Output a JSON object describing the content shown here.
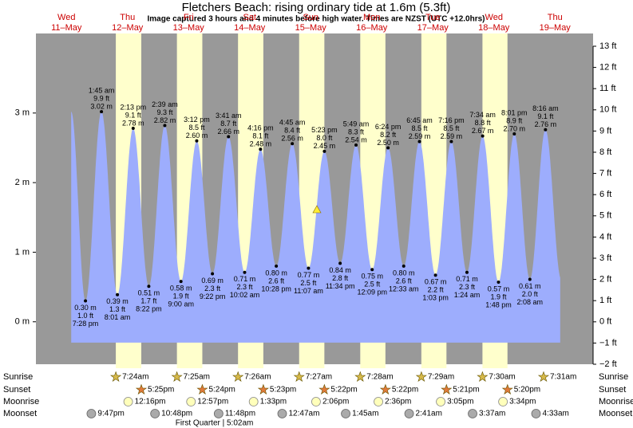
{
  "chart_data": {
    "type": "tide",
    "title": "Fletchers Beach: rising  ordinary tide at 1.6m (5.3ft)",
    "subtitle": "Image captured 3 hours and 4 minutes before high water. Times are NZST (UTC +12.0hrs)",
    "ylim": [
      -0.61,
      3.96
    ],
    "yticks": [
      {
        "value": 0,
        "label": "0 m"
      },
      {
        "value": 1,
        "label": "1 m"
      },
      {
        "value": 2,
        "label": "2 m"
      },
      {
        "value": 3,
        "label": "3 m"
      }
    ],
    "y2lim": [
      -2,
      13
    ],
    "y2ticks": [
      {
        "value": -2,
        "label": "−2 ft"
      },
      {
        "value": -1,
        "label": "−1 ft"
      },
      {
        "value": 0,
        "label": "0 ft"
      },
      {
        "value": 1,
        "label": "1 ft"
      },
      {
        "value": 2,
        "label": "2 ft"
      },
      {
        "value": 3,
        "label": "3 ft"
      },
      {
        "value": 4,
        "label": "4 ft"
      },
      {
        "value": 5,
        "label": "5 ft"
      },
      {
        "value": 6,
        "label": "6 ft"
      },
      {
        "value": 7,
        "label": "7 ft"
      },
      {
        "value": 8,
        "label": "8 ft"
      },
      {
        "value": 9,
        "label": "9 ft"
      },
      {
        "value": 10,
        "label": "10 ft"
      },
      {
        "value": 11,
        "label": "11 ft"
      },
      {
        "value": 12,
        "label": "12 ft"
      },
      {
        "value": 13,
        "label": "13 ft"
      }
    ],
    "color": "#9dadfd",
    "row_labels": {
      "sunrise": "Sunrise",
      "sunset": "Sunset",
      "moonrise": "Moonrise",
      "moonset": "Moonset"
    },
    "days": [
      {
        "weekday": "Wed",
        "date": "11–May",
        "sunrise": null,
        "sunset": null,
        "moonrise": null,
        "moonset": "9:47pm",
        "tides": [
          {
            "time": "7:28 pm",
            "value": 0.3,
            "value_label": "0.30 m",
            "ft_label": "1.0 ft"
          }
        ]
      },
      {
        "weekday": "Thu",
        "date": "12–May",
        "sunrise": "7:24am",
        "sunset": "5:25pm",
        "moonrise": "12:16pm",
        "moonset": "10:48pm",
        "tides": [
          {
            "time": "1:45 am",
            "value": 3.02,
            "value_label": "3.02 m",
            "ft_label": "9.9 ft"
          },
          {
            "time": "8:01 am",
            "value": 0.39,
            "value_label": "0.39 m",
            "ft_label": "1.3 ft"
          },
          {
            "time": "2:13 pm",
            "value": 2.78,
            "value_label": "2.78 m",
            "ft_label": "9.1 ft"
          },
          {
            "time": "8:22 pm",
            "value": 0.51,
            "value_label": "0.51 m",
            "ft_label": "1.7 ft"
          }
        ]
      },
      {
        "weekday": "Fri",
        "date": "13–May",
        "sunrise": "7:25am",
        "sunset": "5:24pm",
        "moonrise": "12:57pm",
        "moonset": "11:48pm",
        "tides": [
          {
            "time": "2:39 am",
            "value": 2.82,
            "value_label": "2.82 m",
            "ft_label": "9.3 ft"
          },
          {
            "time": "9:00 am",
            "value": 0.58,
            "value_label": "0.58 m",
            "ft_label": "1.9 ft"
          },
          {
            "time": "3:12 pm",
            "value": 2.6,
            "value_label": "2.60 m",
            "ft_label": "8.5 ft"
          },
          {
            "time": "9:22 pm",
            "value": 0.69,
            "value_label": "0.69 m",
            "ft_label": "2.3 ft"
          }
        ]
      },
      {
        "weekday": "Sat",
        "date": "14–May",
        "sunrise": "7:26am",
        "sunset": "5:23pm",
        "moonrise": "1:33pm",
        "moonset": null,
        "moon_phase": "First Quarter | 5:02am",
        "tides": [
          {
            "time": "3:41 am",
            "value": 2.66,
            "value_label": "2.66 m",
            "ft_label": "8.7 ft"
          },
          {
            "time": "10:02 am",
            "value": 0.71,
            "value_label": "0.71 m",
            "ft_label": "2.3 ft"
          },
          {
            "time": "4:16 pm",
            "value": 2.48,
            "value_label": "2.48 m",
            "ft_label": "8.1 ft"
          },
          {
            "time": "10:28 pm",
            "value": 0.8,
            "value_label": "0.80 m",
            "ft_label": "2.6 ft"
          }
        ]
      },
      {
        "weekday": "Sun",
        "date": "15–May",
        "sunrise": "7:27am",
        "sunset": "5:22pm",
        "moonrise": "2:06pm",
        "moonset": "12:47am",
        "tides": [
          {
            "time": "4:45 am",
            "value": 2.56,
            "value_label": "2.56 m",
            "ft_label": "8.4 ft"
          },
          {
            "time": "11:07 am",
            "value": 0.77,
            "value_label": "0.77 m",
            "ft_label": "2.5 ft"
          },
          {
            "time": "5:23 pm",
            "value": 2.45,
            "value_label": "2.45 m",
            "ft_label": "8.0 ft"
          },
          {
            "time": "11:34 pm",
            "value": 0.84,
            "value_label": "0.84 m",
            "ft_label": "2.8 ft"
          }
        ]
      },
      {
        "weekday": "Mon",
        "date": "16–May",
        "sunrise": "7:28am",
        "sunset": "5:22pm",
        "moonrise": "2:36pm",
        "moonset": "1:45am",
        "tides": [
          {
            "time": "5:49 am",
            "value": 2.54,
            "value_label": "2.54 m",
            "ft_label": "8.3 ft"
          },
          {
            "time": "12:09 pm",
            "value": 0.75,
            "value_label": "0.75 m",
            "ft_label": "2.5 ft"
          },
          {
            "time": "6:24 pm",
            "value": 2.5,
            "value_label": "2.50 m",
            "ft_label": "8.2 ft"
          }
        ]
      },
      {
        "weekday": "Tue",
        "date": "17–May",
        "sunrise": "7:29am",
        "sunset": "5:21pm",
        "moonrise": "3:05pm",
        "moonset": "2:41am",
        "tides": [
          {
            "time": "12:33 am",
            "value": 0.8,
            "value_label": "0.80 m",
            "ft_label": "2.6 ft"
          },
          {
            "time": "6:45 am",
            "value": 2.59,
            "value_label": "2.59 m",
            "ft_label": "8.5 ft"
          },
          {
            "time": "1:03 pm",
            "value": 0.67,
            "value_label": "0.67 m",
            "ft_label": "2.2 ft"
          },
          {
            "time": "7:16 pm",
            "value": 2.59,
            "value_label": "2.59 m",
            "ft_label": "8.5 ft"
          }
        ]
      },
      {
        "weekday": "Wed",
        "date": "18–May",
        "sunrise": "7:30am",
        "sunset": "5:20pm",
        "moonrise": "3:34pm",
        "moonset": "3:37am",
        "tides": [
          {
            "time": "1:24 am",
            "value": 0.71,
            "value_label": "0.71 m",
            "ft_label": "2.3 ft"
          },
          {
            "time": "7:34 am",
            "value": 2.67,
            "value_label": "2.67 m",
            "ft_label": "8.8 ft"
          },
          {
            "time": "1:48 pm",
            "value": 0.57,
            "value_label": "0.57 m",
            "ft_label": "1.9 ft"
          },
          {
            "time": "8:01 pm",
            "value": 2.7,
            "value_label": "2.70 m",
            "ft_label": "8.9 ft"
          }
        ]
      },
      {
        "weekday": "Thu",
        "date": "19–May",
        "sunrise": "7:31am",
        "sunset": null,
        "moonrise": null,
        "moonset": "4:33am",
        "tides": [
          {
            "time": "2:08 am",
            "value": 0.61,
            "value_label": "0.61 m",
            "ft_label": "2.0 ft"
          },
          {
            "time": "8:16 am",
            "value": 2.76,
            "value_label": "2.76 m",
            "ft_label": "9.1 ft"
          }
        ]
      }
    ]
  }
}
